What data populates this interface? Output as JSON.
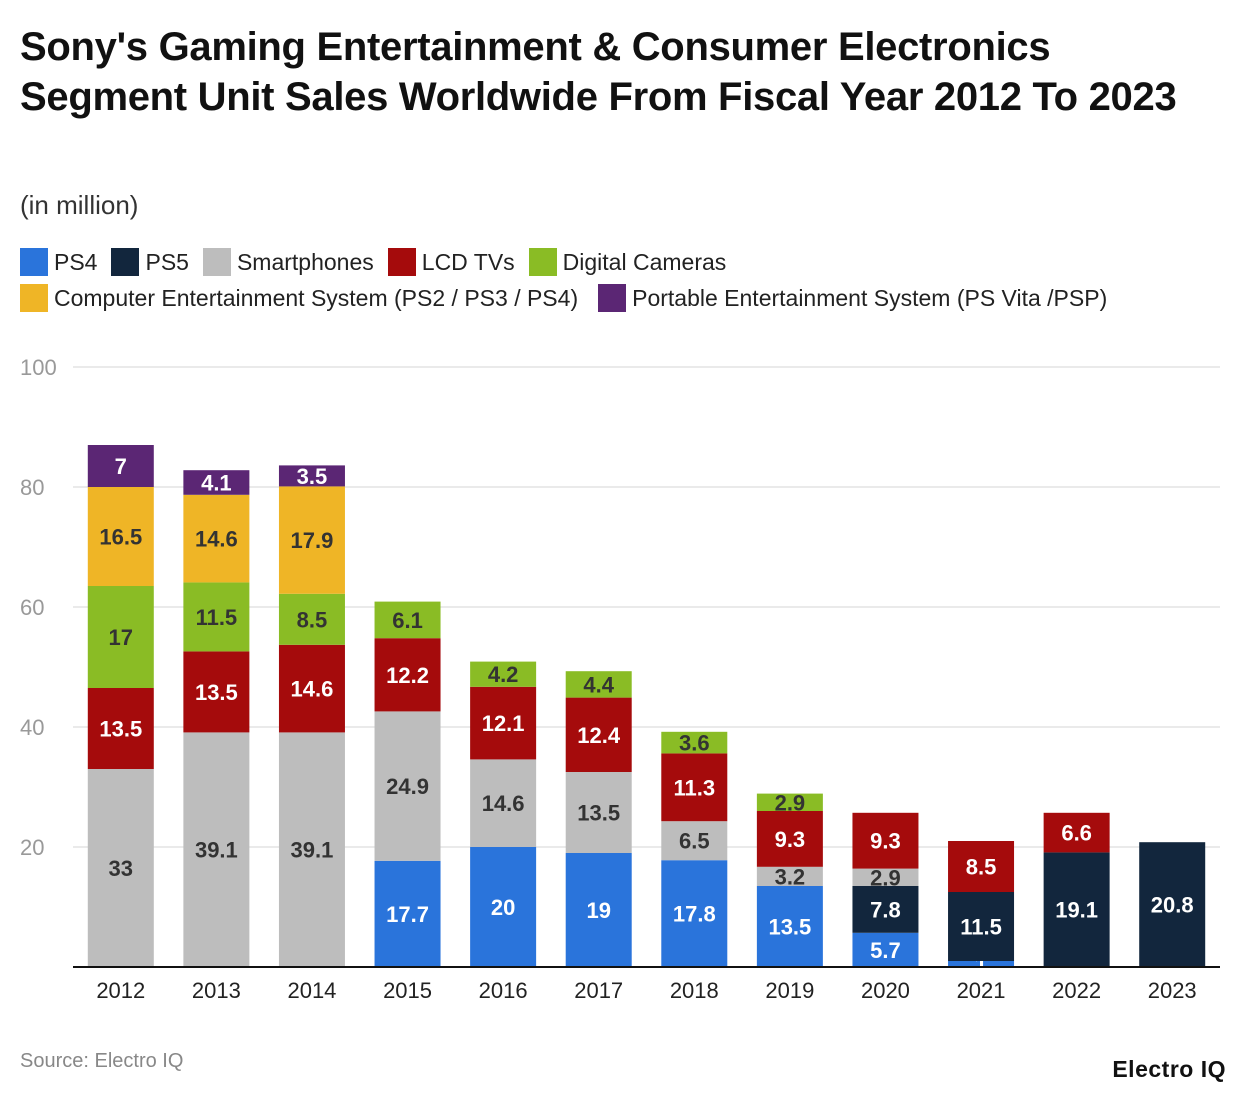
{
  "title": "Sony's Gaming Entertainment & Consumer Electronics Segment Unit Sales Worldwide From Fiscal Year 2012 To 2023",
  "subtitle": "(in million)",
  "source": "Source: Electro IQ",
  "logo": "Electro IQ",
  "chart_data": {
    "type": "bar",
    "stacked": true,
    "title": "Sony's Gaming Entertainment & Consumer Electronics Segment Unit Sales Worldwide From Fiscal Year 2012 To 2023",
    "subtitle": "(in million)",
    "legend_position": "top",
    "grid": true,
    "ylim": [
      0,
      100
    ],
    "yticks": [
      20,
      40,
      60,
      80,
      100
    ],
    "categories": [
      "2012",
      "2013",
      "2014",
      "2015",
      "2016",
      "2017",
      "2018",
      "2019",
      "2020",
      "2021",
      "2022",
      "2023"
    ],
    "series": [
      {
        "name": "PS4",
        "color": "#2a74db",
        "label_color": "#ffffff",
        "values": [
          null,
          null,
          null,
          17.7,
          20,
          19,
          17.8,
          13.5,
          5.7,
          1,
          null,
          null
        ]
      },
      {
        "name": "PS5",
        "color": "#12263d",
        "label_color": "#ffffff",
        "values": [
          null,
          null,
          null,
          null,
          null,
          null,
          null,
          null,
          7.8,
          11.5,
          19.1,
          20.8
        ]
      },
      {
        "name": "Smartphones",
        "color": "#bdbdbd",
        "label_color": "#333333",
        "values": [
          33,
          39.1,
          39.1,
          24.9,
          14.6,
          13.5,
          6.5,
          3.2,
          2.9,
          null,
          null,
          null
        ]
      },
      {
        "name": "LCD TVs",
        "color": "#a50b0c",
        "label_color": "#ffffff",
        "values": [
          13.5,
          13.5,
          14.6,
          12.2,
          12.1,
          12.4,
          11.3,
          9.3,
          9.3,
          8.5,
          6.6,
          null
        ]
      },
      {
        "name": "Digital Cameras",
        "color": "#8abc25",
        "label_color": "#333333",
        "values": [
          17,
          11.5,
          8.5,
          6.1,
          4.2,
          4.4,
          3.6,
          2.9,
          null,
          null,
          null,
          null
        ]
      },
      {
        "name": "Computer Entertainment System (PS2 / PS3 / PS4)",
        "color": "#efb526",
        "label_color": "#333333",
        "values": [
          16.5,
          14.6,
          17.9,
          null,
          null,
          null,
          null,
          null,
          null,
          null,
          null,
          null
        ]
      },
      {
        "name": "Portable Entertainment System (PS Vita /PSP)",
        "color": "#5b2674",
        "label_color": "#ffffff",
        "values": [
          7,
          4.1,
          3.5,
          null,
          null,
          null,
          null,
          null,
          null,
          null,
          null,
          null
        ]
      }
    ]
  }
}
